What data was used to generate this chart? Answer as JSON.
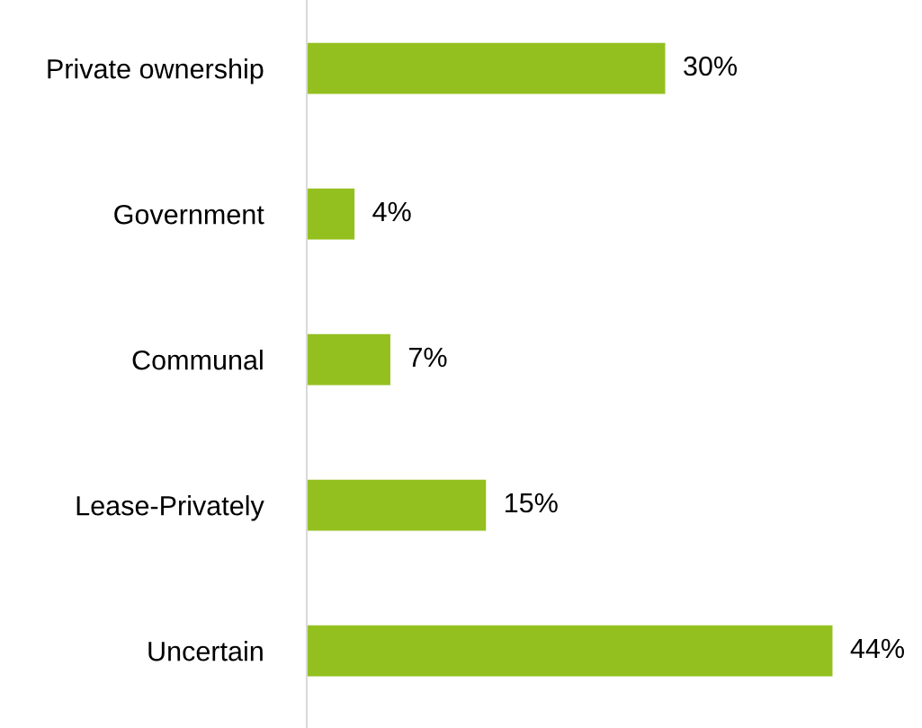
{
  "chart_data": {
    "type": "bar",
    "orientation": "horizontal",
    "categories": [
      "Private ownership",
      "Government",
      "Communal",
      "Lease-Privately",
      "Uncertain"
    ],
    "values": [
      30,
      4,
      7,
      15,
      44
    ],
    "value_labels": [
      "30%",
      "4%",
      "7%",
      "15%",
      "44%"
    ],
    "color": "#93c01f",
    "grid": false,
    "legend": false
  }
}
